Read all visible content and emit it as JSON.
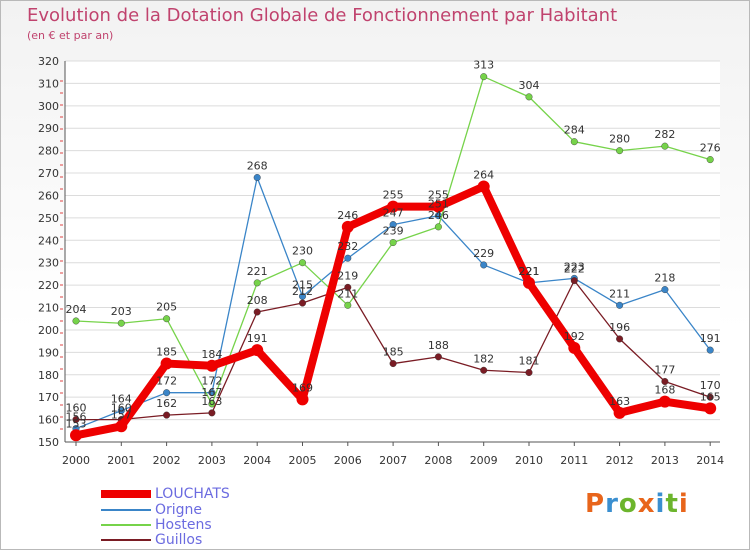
{
  "chart_data": {
    "type": "line",
    "title": "Evolution de la Dotation Globale de Fonctionnement par Habitant",
    "subtitle": "(en € et par an)",
    "x": [
      "2000",
      "2001",
      "2002",
      "2003",
      "2004",
      "2005",
      "2006",
      "2007",
      "2008",
      "2009",
      "2010",
      "2011",
      "2012",
      "2013",
      "2014"
    ],
    "yticks": [
      150,
      160,
      170,
      180,
      190,
      200,
      210,
      220,
      230,
      240,
      250,
      260,
      270,
      280,
      290,
      300,
      310,
      320
    ],
    "ylim": [
      150,
      320
    ],
    "series": [
      {
        "name": "LOUCHATS",
        "color": "#ee0000",
        "values": [
          153,
          157,
          185,
          184,
          191,
          169,
          246,
          255,
          255,
          264,
          221,
          192,
          163,
          168,
          165
        ]
      },
      {
        "name": "Origne",
        "color": "#3a85c8",
        "values": [
          156,
          164,
          172,
          172,
          268,
          215,
          232,
          247,
          251,
          229,
          221,
          223,
          211,
          218,
          191
        ]
      },
      {
        "name": "Hostens",
        "color": "#76d34a",
        "values": [
          204,
          203,
          205,
          167,
          221,
          230,
          211,
          239,
          246,
          313,
          304,
          284,
          280,
          282,
          276
        ]
      },
      {
        "name": "Guillos",
        "color": "#7a1c24",
        "values": [
          160,
          160,
          162,
          163,
          208,
          212,
          219,
          185,
          188,
          182,
          181,
          222,
          196,
          177,
          170
        ]
      }
    ],
    "labels": [
      {
        "series": 0,
        "values": [
          "153",
          "157",
          "185",
          "184",
          "191",
          "169",
          "246",
          "255",
          "255",
          "264",
          "221",
          "192",
          "163",
          "168",
          "165"
        ]
      },
      {
        "series": 1,
        "values": [
          "156",
          "164",
          "172",
          "172",
          "268",
          "215",
          "232",
          "247",
          "251",
          "229",
          "221",
          "223",
          "211",
          "218",
          "191"
        ]
      },
      {
        "series": 2,
        "values": [
          "204",
          "203",
          "205",
          "167",
          "221",
          "230",
          "211",
          "239",
          "246",
          "313",
          "304",
          "284",
          "280",
          "282",
          "276"
        ]
      },
      {
        "series": 3,
        "values": [
          "160",
          "160",
          "162",
          "163",
          "208",
          "212",
          "219",
          "185",
          "188",
          "182",
          "181",
          "222",
          "196",
          "177",
          "170"
        ]
      }
    ]
  },
  "logo": {
    "text": "Proxiti",
    "colors": [
      "#e8651b",
      "#3a8fd0",
      "#6cb52d",
      "#e8651b",
      "#3a8fd0",
      "#6cb52d",
      "#e8651b"
    ]
  }
}
